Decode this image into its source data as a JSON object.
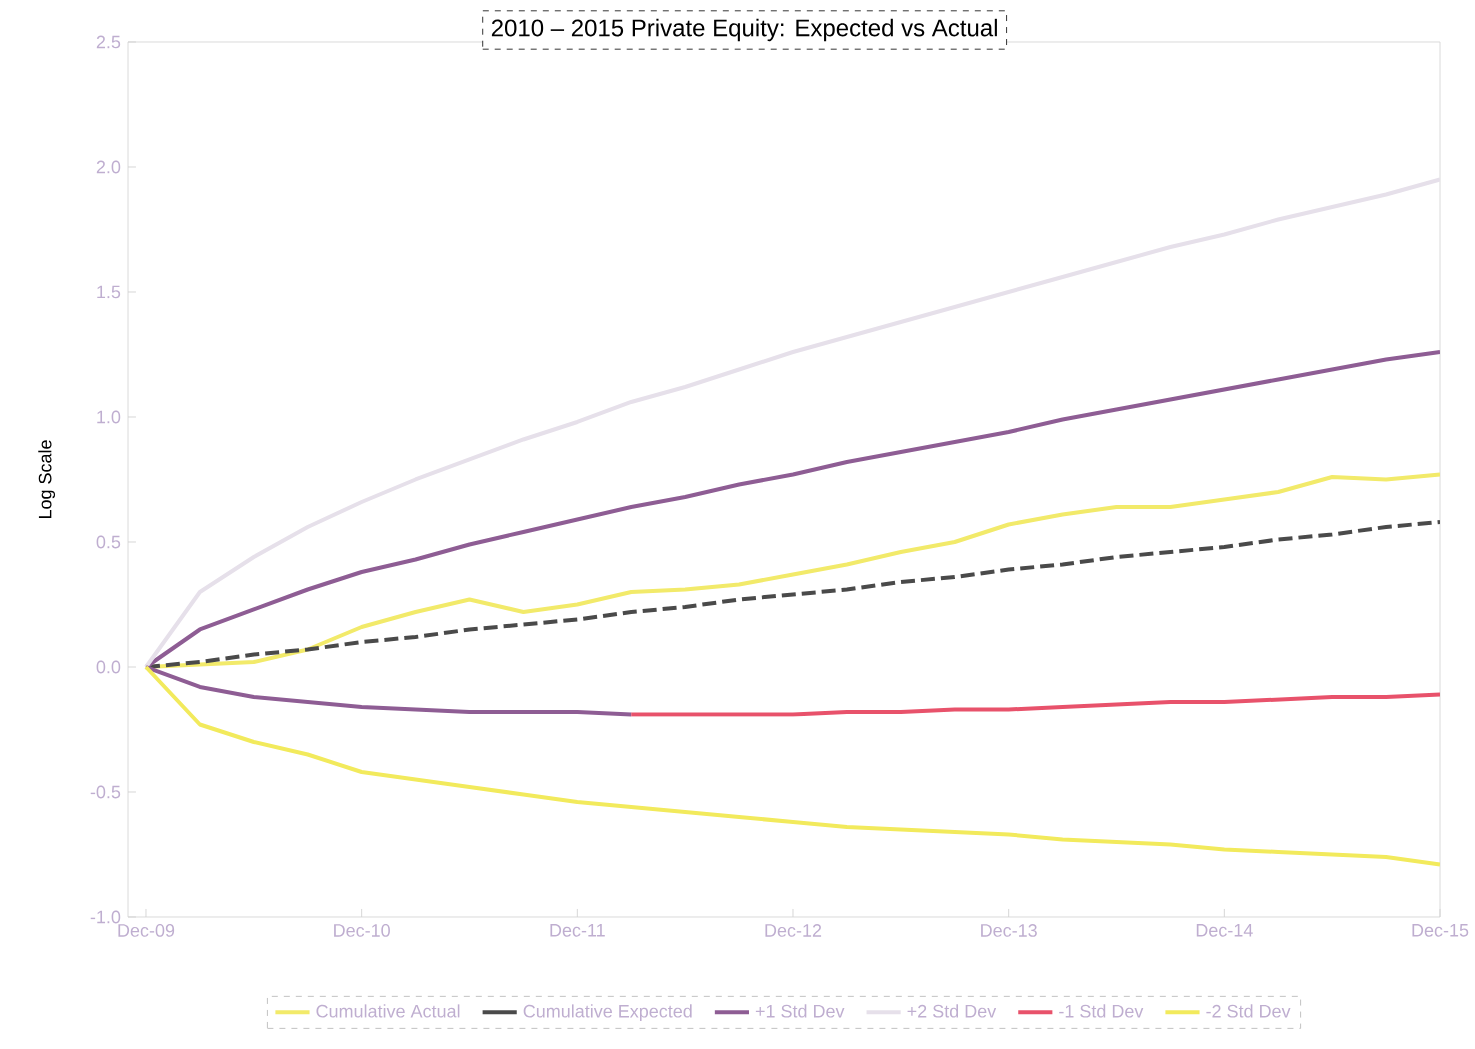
{
  "chart_data": {
    "type": "line",
    "title": "2010 – 2015 Private Equity: Expected vs Actual",
    "ylabel": "Log Scale",
    "x": [
      "2009-12",
      "2010-03",
      "2010-06",
      "2010-09",
      "2010-12",
      "2011-03",
      "2011-06",
      "2011-09",
      "2011-12",
      "2012-03",
      "2012-06",
      "2012-09",
      "2012-12",
      "2013-03",
      "2013-06",
      "2013-09",
      "2013-12",
      "2014-03",
      "2014-06",
      "2014-09",
      "2014-12",
      "2015-03",
      "2015-06",
      "2015-09",
      "2015-12"
    ],
    "xlim": [
      "2009-11",
      "2015-12"
    ],
    "xticks": [
      {
        "value": "2009-12",
        "label": "Dec-09"
      },
      {
        "value": "2010-12",
        "label": "Dec-10"
      },
      {
        "value": "2011-12",
        "label": "Dec-11"
      },
      {
        "value": "2012-12",
        "label": "Dec-12"
      },
      {
        "value": "2013-12",
        "label": "Dec-13"
      },
      {
        "value": "2014-12",
        "label": "Dec-14"
      },
      {
        "value": "2015-12",
        "label": "Dec-15"
      }
    ],
    "ylim": [
      -1.0,
      2.5
    ],
    "yticks": [
      {
        "value": -1.0,
        "label": "-1.0"
      },
      {
        "value": -0.5,
        "label": "-0.5"
      },
      {
        "value": 0.0,
        "label": "0.0"
      },
      {
        "value": 0.5,
        "label": "0.5"
      },
      {
        "value": 1.0,
        "label": "1.0"
      },
      {
        "value": 1.5,
        "label": "1.5"
      },
      {
        "value": 2.0,
        "label": "2.0"
      },
      {
        "value": 2.5,
        "label": "2.5"
      }
    ],
    "legend": "bottom",
    "marker": "none",
    "series": [
      {
        "name": "Cumulative Actual",
        "color": "#f2ea6a",
        "values": [
          0,
          0.01,
          0.02,
          0.07,
          0.16,
          0.22,
          0.27,
          0.22,
          0.25,
          0.3,
          0.31,
          0.33,
          0.37,
          0.41,
          0.46,
          0.5,
          0.57,
          0.61,
          0.64,
          0.64,
          0.67,
          0.7,
          0.76,
          0.75,
          0.77
        ]
      },
      {
        "name": "Cumulative Expected",
        "color": "#4a4a4a",
        "line_style": "dashed",
        "values": [
          0,
          0.02,
          0.05,
          0.07,
          0.1,
          0.12,
          0.15,
          0.17,
          0.19,
          0.22,
          0.24,
          0.27,
          0.29,
          0.31,
          0.34,
          0.36,
          0.39,
          0.41,
          0.44,
          0.46,
          0.48,
          0.51,
          0.53,
          0.56,
          0.58
        ]
      },
      {
        "name": "+1 Std Dev",
        "color": "#8e5d94",
        "values": [
          0,
          0.15,
          0.23,
          0.31,
          0.38,
          0.43,
          0.49,
          0.54,
          0.59,
          0.64,
          0.68,
          0.73,
          0.77,
          0.82,
          0.86,
          0.9,
          0.94,
          0.99,
          1.03,
          1.07,
          1.11,
          1.15,
          1.19,
          1.23,
          1.26
        ]
      },
      {
        "name": "+2 Std Dev",
        "color": "#e6e0ea",
        "values": [
          0,
          0.3,
          0.44,
          0.56,
          0.66,
          0.75,
          0.83,
          0.91,
          0.98,
          1.06,
          1.12,
          1.19,
          1.26,
          1.32,
          1.38,
          1.44,
          1.5,
          1.56,
          1.62,
          1.68,
          1.73,
          1.79,
          1.84,
          1.89,
          1.95
        ]
      },
      {
        "color": "#8e5d94",
        "values": [
          0,
          -0.08,
          -0.12,
          -0.14,
          -0.16,
          -0.17,
          -0.18,
          -0.18,
          -0.18,
          -0.19,
          null,
          null,
          null,
          null,
          null,
          null,
          null,
          null,
          null,
          null,
          null,
          null,
          null,
          null,
          null
        ]
      },
      {
        "name": "-1 Std Dev",
        "color": "#e8526b",
        "values": [
          null,
          null,
          null,
          null,
          null,
          null,
          null,
          null,
          null,
          -0.19,
          -0.19,
          -0.19,
          -0.19,
          -0.18,
          -0.18,
          -0.17,
          -0.17,
          -0.16,
          -0.15,
          -0.14,
          -0.14,
          -0.13,
          -0.12,
          -0.12,
          -0.11
        ]
      },
      {
        "name": "-2 Std Dev",
        "color": "#f2ea5c",
        "values": [
          0,
          -0.23,
          -0.3,
          -0.35,
          -0.42,
          -0.45,
          -0.48,
          -0.51,
          -0.54,
          -0.56,
          -0.58,
          -0.6,
          -0.62,
          -0.64,
          -0.65,
          -0.66,
          -0.67,
          -0.69,
          -0.7,
          -0.71,
          -0.73,
          -0.74,
          -0.75,
          -0.76,
          -0.79
        ]
      }
    ]
  }
}
